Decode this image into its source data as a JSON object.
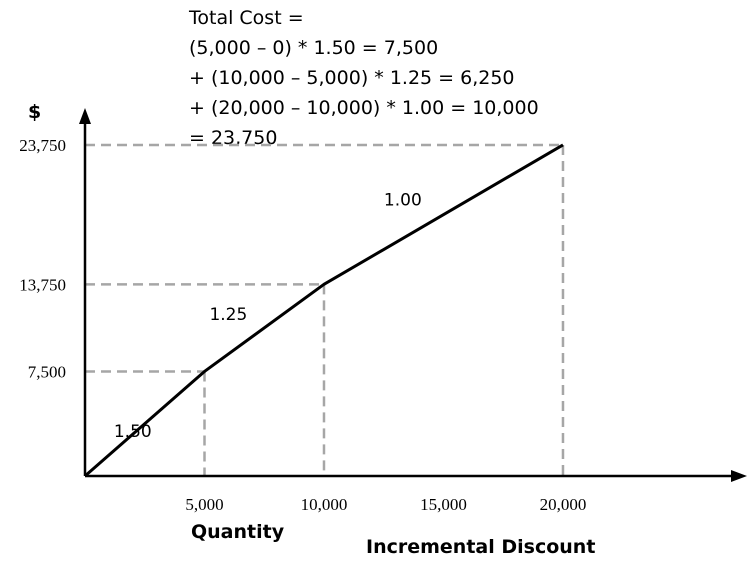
{
  "formula": {
    "lines": [
      "Total Cost =",
      "(5,000 – 0) * 1.50 = 7,500",
      "+ (10,000 – 5,000) * 1.25 = 6,250",
      "+ (20,000 – 10,000) * 1.00 = 10,000",
      "= 23,750"
    ]
  },
  "chart_data": {
    "type": "line",
    "title": "",
    "xlabel": "Quantity",
    "ylabel": "$",
    "caption": "Incremental Discount",
    "x": [
      0,
      5000,
      10000,
      20000
    ],
    "y": [
      0,
      7500,
      13750,
      23750
    ],
    "segment_labels": [
      {
        "text": "1.50",
        "x": 2000,
        "y": 2800
      },
      {
        "text": "1.25",
        "x": 6000,
        "y": 11200
      },
      {
        "text": "1.00",
        "x": 13300,
        "y": 19400
      }
    ],
    "x_ticks": [
      {
        "value": 5000,
        "label": "5,000"
      },
      {
        "value": 10000,
        "label": "10,000"
      },
      {
        "value": 15000,
        "label": "15,000"
      },
      {
        "value": 20000,
        "label": "20,000"
      }
    ],
    "y_ticks": [
      {
        "value": 7500,
        "label": "7,500"
      },
      {
        "value": 13750,
        "label": "13,750"
      },
      {
        "value": 23750,
        "label": "23,750"
      }
    ],
    "guides": [
      {
        "x": 5000,
        "y": 7500
      },
      {
        "x": 10000,
        "y": 13750
      },
      {
        "x": 20000,
        "y": 23750
      }
    ],
    "xlim": [
      0,
      27700
    ],
    "ylim": [
      0,
      26400
    ],
    "grid": false,
    "colors": {
      "line": "#000000",
      "guides": "#a6a6a6",
      "axes": "#000000"
    }
  }
}
